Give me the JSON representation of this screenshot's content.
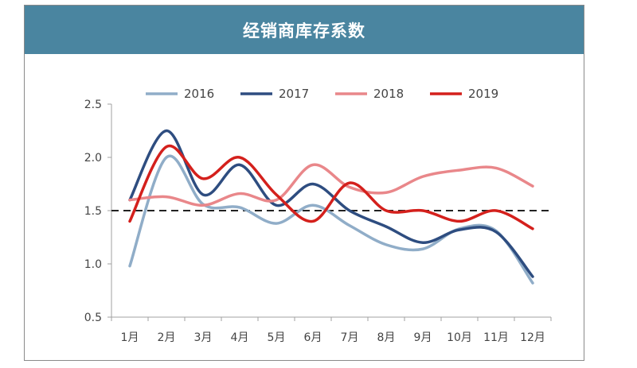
{
  "chart_data": {
    "type": "line",
    "title": "经销商库存系数",
    "categories": [
      "1月",
      "2月",
      "3月",
      "4月",
      "5月",
      "6月",
      "7月",
      "8月",
      "9月",
      "10月",
      "11月",
      "12月"
    ],
    "ylim": [
      0.5,
      2.5
    ],
    "yticks": [
      "0.5",
      "1.0",
      "1.5",
      "2.0",
      "2.5"
    ],
    "reference_line": 1.5,
    "grid": false,
    "legend_position": "top",
    "series": [
      {
        "name": "2016",
        "color": "#90adc8",
        "values": [
          0.98,
          2.0,
          1.56,
          1.53,
          1.38,
          1.55,
          1.36,
          1.18,
          1.14,
          1.33,
          1.31,
          0.82
        ]
      },
      {
        "name": "2017",
        "color": "#2e4d80",
        "values": [
          1.6,
          2.25,
          1.65,
          1.93,
          1.55,
          1.75,
          1.5,
          1.35,
          1.2,
          1.32,
          1.3,
          0.88
        ]
      },
      {
        "name": "2018",
        "color": "#e9878a",
        "values": [
          1.6,
          1.63,
          1.55,
          1.66,
          1.6,
          1.93,
          1.72,
          1.67,
          1.82,
          1.88,
          1.9,
          1.73
        ]
      },
      {
        "name": "2019",
        "color": "#d4201c",
        "values": [
          1.4,
          2.1,
          1.8,
          2.0,
          1.65,
          1.4,
          1.76,
          1.5,
          1.5,
          1.4,
          1.5,
          1.33
        ]
      }
    ]
  }
}
